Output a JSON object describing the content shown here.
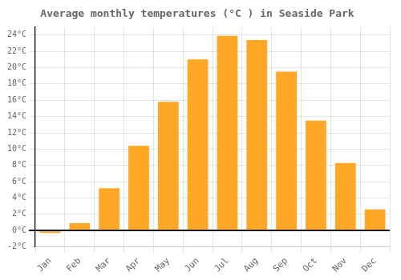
{
  "chart_data": {
    "type": "bar",
    "title": "Average monthly temperatures (°C ) in Seaside Park",
    "categories": [
      "Jan",
      "Feb",
      "Mar",
      "Apr",
      "May",
      "Jun",
      "Jul",
      "Aug",
      "Sep",
      "Oct",
      "Nov",
      "Dec"
    ],
    "values": [
      -0.3,
      0.9,
      5.2,
      10.4,
      15.8,
      21.0,
      23.9,
      23.4,
      19.5,
      13.5,
      8.3,
      2.6
    ],
    "color": "#FFA726",
    "ylim": [
      -2,
      25
    ],
    "yticks": [
      {
        "value": -2,
        "label": "-2°C"
      },
      {
        "value": 0,
        "label": "0°C"
      },
      {
        "value": 2,
        "label": "2°C"
      },
      {
        "value": 4,
        "label": "4°C"
      },
      {
        "value": 6,
        "label": "6°C"
      },
      {
        "value": 8,
        "label": "8°C"
      },
      {
        "value": 10,
        "label": "10°C"
      },
      {
        "value": 12,
        "label": "12°C"
      },
      {
        "value": 14,
        "label": "14°C"
      },
      {
        "value": 16,
        "label": "16°C"
      },
      {
        "value": 18,
        "label": "18°C"
      },
      {
        "value": 20,
        "label": "20°C"
      },
      {
        "value": 22,
        "label": "22°C"
      },
      {
        "value": 24,
        "label": "24°C"
      }
    ],
    "grid": true
  }
}
